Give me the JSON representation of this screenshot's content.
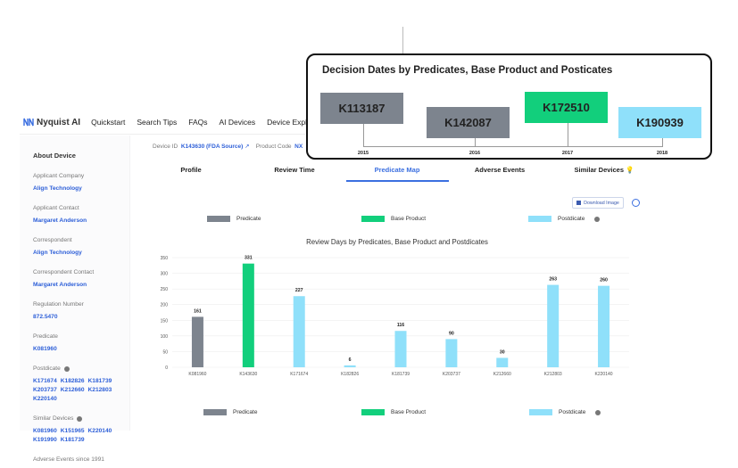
{
  "nav": {
    "logo": "Nyquist AI",
    "items": [
      "Quickstart",
      "Search Tips",
      "FAQs",
      "AI Devices",
      "Device Explorer"
    ]
  },
  "device": {
    "id_label": "Device ID",
    "id_value": "K143630 (FDA Source)",
    "product_code_label": "Product Code",
    "product_code_value": "NX"
  },
  "sidebar": {
    "title": "About Device",
    "fields": [
      {
        "label": "Applicant Company",
        "values": [
          "Align Technology"
        ]
      },
      {
        "label": "Applicant Contact",
        "values": [
          "Margaret Anderson"
        ]
      },
      {
        "label": "Correspondent",
        "values": [
          "Align Technology"
        ]
      },
      {
        "label": "Correspondent Contact",
        "values": [
          "Margaret Anderson"
        ]
      },
      {
        "label": "Regulation Number",
        "values": [
          "872.5470"
        ]
      },
      {
        "label": "Predicate",
        "values": [
          "K081960"
        ]
      },
      {
        "label": "Postdicate",
        "info": true,
        "values": [
          "K171674",
          "K182826",
          "K181739",
          "K203737",
          "K212660",
          "K212803",
          "K220140"
        ]
      },
      {
        "label": "Similar Devices",
        "info": true,
        "values": [
          "K081960",
          "K151965",
          "K220140",
          "K191990",
          "K181739"
        ]
      },
      {
        "label": "Adverse Events since 1991",
        "values": []
      }
    ]
  },
  "tabs": [
    {
      "label": "Profile"
    },
    {
      "label": "Review Time"
    },
    {
      "label": "Predicate Map",
      "active": true
    },
    {
      "label": "Adverse Events"
    },
    {
      "label": "Similar Devices",
      "icon": "lightbulb-icon"
    }
  ],
  "toolbar": {
    "download_label": "Download Image"
  },
  "colors": {
    "Predicate": "#7d848e",
    "Base Product": "#12cf7c",
    "Postdicate": "#8fe0fa",
    "accent": "#3b6fe0"
  },
  "legend": [
    "Predicate",
    "Base Product",
    "Postdicate"
  ],
  "chart_data": {
    "type": "bar",
    "title": "Review Days by Predicates, Base Product and Postdicates",
    "categories": [
      "K081960",
      "K143630",
      "K171674",
      "K182826",
      "K181739",
      "K203737",
      "K212660",
      "K212803",
      "K220140"
    ],
    "values": [
      161,
      331,
      227,
      6,
      116,
      90,
      30,
      263,
      260
    ],
    "groups": [
      "Predicate",
      "Base Product",
      "Postdicate",
      "Postdicate",
      "Postdicate",
      "Postdicate",
      "Postdicate",
      "Postdicate",
      "Postdicate"
    ],
    "yticks": [
      0,
      50,
      100,
      150,
      200,
      250,
      300,
      350
    ],
    "ylim": [
      0,
      350
    ],
    "grid": true,
    "legend": "top and bottom"
  },
  "callout": {
    "title": "Decision Dates by Predicates, Base Product and Posticates",
    "items": [
      {
        "id": "K113187",
        "group": "Predicate",
        "year": "2015"
      },
      {
        "id": "K142087",
        "group": "Predicate",
        "year": "2016"
      },
      {
        "id": "K172510",
        "group": "Base Product",
        "year": "2017"
      },
      {
        "id": "K190939",
        "group": "Postdicate",
        "year": "2018"
      }
    ]
  }
}
